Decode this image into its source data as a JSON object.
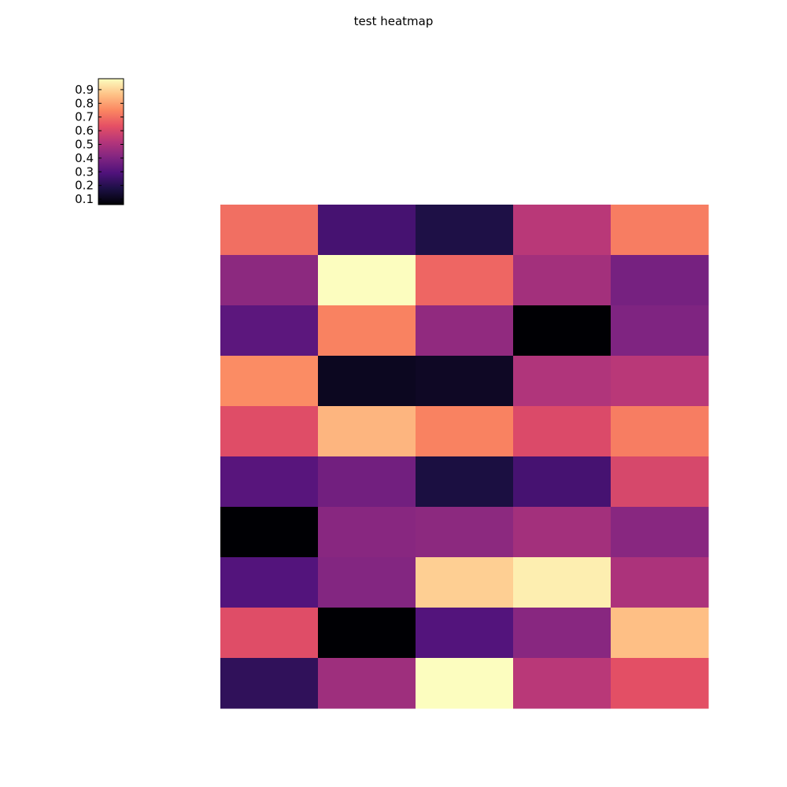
{
  "chart_data": {
    "type": "heatmap",
    "title": "test heatmap",
    "colormap": "magma",
    "rows": 10,
    "cols": 5,
    "values": [
      [
        0.7,
        0.27,
        0.18,
        0.53,
        0.73
      ],
      [
        0.43,
        0.98,
        0.68,
        0.48,
        0.38
      ],
      [
        0.32,
        0.74,
        0.44,
        0.02,
        0.4
      ],
      [
        0.76,
        0.11,
        0.12,
        0.51,
        0.53
      ],
      [
        0.62,
        0.84,
        0.74,
        0.61,
        0.73
      ],
      [
        0.31,
        0.37,
        0.17,
        0.27,
        0.6
      ],
      [
        0.04,
        0.42,
        0.43,
        0.48,
        0.42
      ],
      [
        0.3,
        0.41,
        0.89,
        0.95,
        0.5
      ],
      [
        0.62,
        0.05,
        0.3,
        0.42,
        0.86
      ],
      [
        0.22,
        0.47,
        1.0,
        0.53,
        0.63
      ]
    ],
    "colorbar": {
      "range": [
        0.06,
        0.98
      ],
      "ticks": [
        0.1,
        0.2,
        0.3,
        0.4,
        0.5,
        0.6,
        0.7,
        0.8,
        0.9
      ],
      "tick_labels": [
        "0.1",
        "0.2",
        "0.3",
        "0.4",
        "0.5",
        "0.6",
        "0.7",
        "0.8",
        "0.9"
      ],
      "placement": "top-left"
    },
    "xlabel": "",
    "ylabel": "",
    "grid": false
  }
}
